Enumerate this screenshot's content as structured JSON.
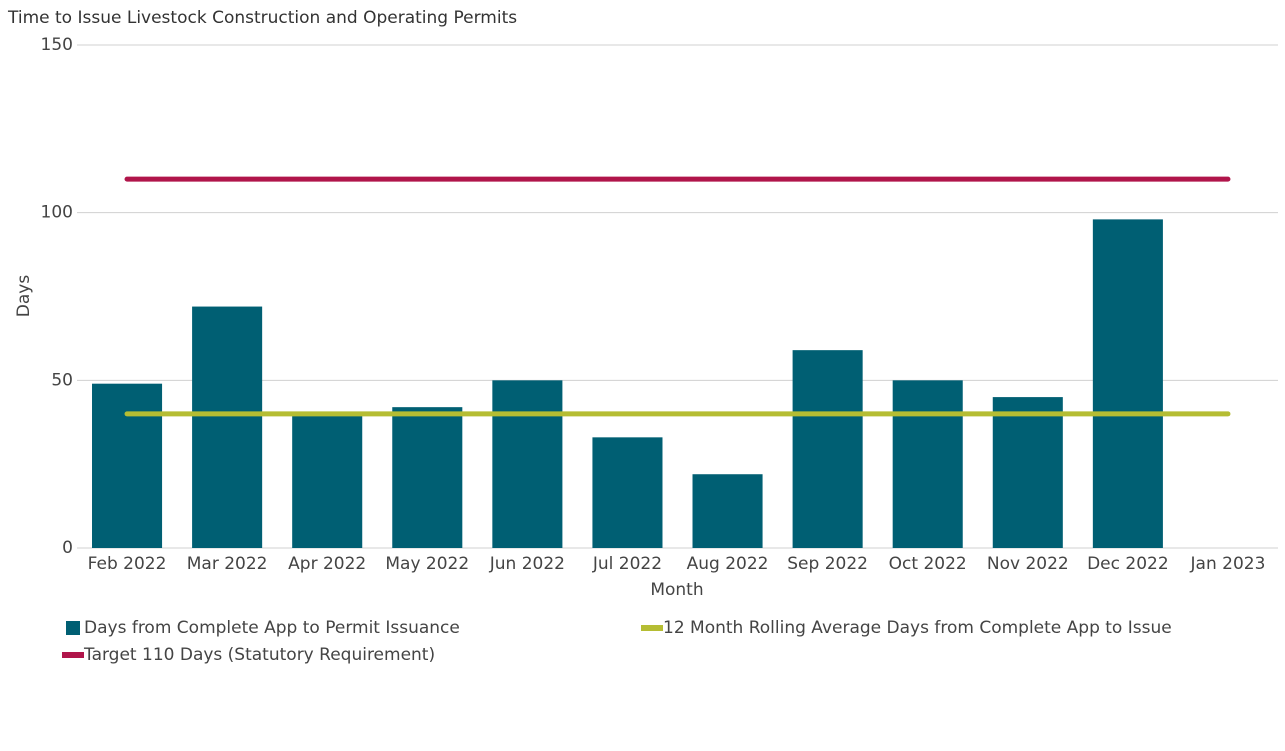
{
  "chart_data": {
    "type": "bar",
    "title": "Time to Issue Livestock Construction and Operating Permits",
    "x_label": "Month",
    "y_label": "Days",
    "categories": [
      "Feb 2022",
      "Mar 2022",
      "Apr 2022",
      "May 2022",
      "Jun 2022",
      "Jul 2022",
      "Aug 2022",
      "Sep 2022",
      "Oct 2022",
      "Nov 2022",
      "Dec 2022",
      "Jan 2023"
    ],
    "series": [
      {
        "name": "Days from Complete App to Permit Issuance",
        "type": "bar",
        "color": "#005f73",
        "values": [
          49,
          72,
          40,
          42,
          50,
          33,
          22,
          59,
          50,
          45,
          98,
          null
        ]
      },
      {
        "name": "12 Month Rolling Average Days from Complete App to Issue",
        "type": "line",
        "color": "#b5bd33",
        "values": [
          40,
          40,
          40,
          40,
          40,
          40,
          40,
          40,
          40,
          40,
          40,
          40
        ]
      },
      {
        "name": "Target 110 Days (Statutory Requirement)",
        "type": "line",
        "color": "#b0154a",
        "values": [
          110,
          110,
          110,
          110,
          110,
          110,
          110,
          110,
          110,
          110,
          110,
          110
        ]
      }
    ],
    "ylim": [
      0,
      150
    ],
    "yticks": [
      0,
      50,
      100,
      150
    ],
    "grid": true
  }
}
